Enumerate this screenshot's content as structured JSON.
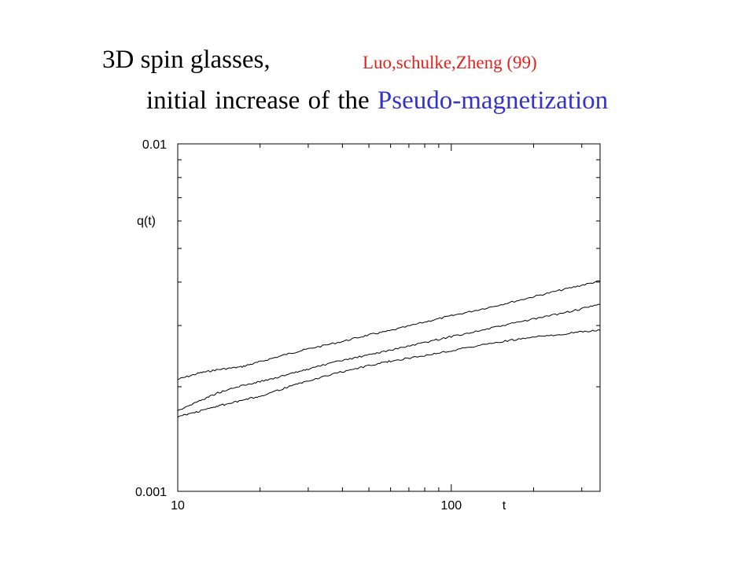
{
  "slide": {
    "heading": "3D spin glasses,",
    "citation": "Luo,schulke,Zheng (99)",
    "subheading_prefix": "initial increase of the",
    "subheading_highlight": "Pseudo-magnetization",
    "colors": {
      "citation": "#e8201a",
      "highlight": "#3333cc",
      "text": "#000000"
    }
  },
  "chart_data": {
    "type": "line",
    "xscale": "log",
    "yscale": "log",
    "xlim": [
      10,
      350
    ],
    "ylim": [
      0.001,
      0.01
    ],
    "xlabel": "t",
    "ylabel": "q(t)",
    "x_tick_labels": [
      {
        "value": 10,
        "label": "10"
      },
      {
        "value": 100,
        "label": "100"
      }
    ],
    "y_tick_labels": [
      {
        "value": 0.001,
        "label": "0.001"
      },
      {
        "value": 0.01,
        "label": "0.01"
      }
    ],
    "grid": false,
    "series": [
      {
        "x": [
          10,
          12,
          14,
          17,
          20,
          25,
          30,
          40,
          50,
          60,
          80,
          100,
          130,
          170,
          220,
          280,
          350
        ],
        "y": [
          0.0021,
          0.00219,
          0.00224,
          0.00228,
          0.00236,
          0.00248,
          0.00257,
          0.0027,
          0.00282,
          0.0029,
          0.00307,
          0.0032,
          0.00335,
          0.00352,
          0.0037,
          0.00387,
          0.00403
        ]
      },
      {
        "x": [
          10,
          12,
          14,
          17,
          20,
          25,
          30,
          40,
          50,
          60,
          80,
          100,
          130,
          170,
          220,
          280,
          350
        ],
        "y": [
          0.00171,
          0.00182,
          0.00192,
          0.00201,
          0.00207,
          0.00216,
          0.00225,
          0.00238,
          0.00247,
          0.00255,
          0.00268,
          0.00279,
          0.00291,
          0.00305,
          0.00318,
          0.00331,
          0.00345
        ]
      },
      {
        "x": [
          10,
          12,
          14,
          17,
          20,
          25,
          30,
          40,
          50,
          60,
          80,
          100,
          130,
          170,
          220,
          280,
          350
        ],
        "y": [
          0.00164,
          0.0017,
          0.00176,
          0.00182,
          0.00188,
          0.00199,
          0.00208,
          0.00221,
          0.0023,
          0.00237,
          0.00246,
          0.00254,
          0.00264,
          0.00273,
          0.0028,
          0.00286,
          0.00291
        ]
      }
    ]
  }
}
